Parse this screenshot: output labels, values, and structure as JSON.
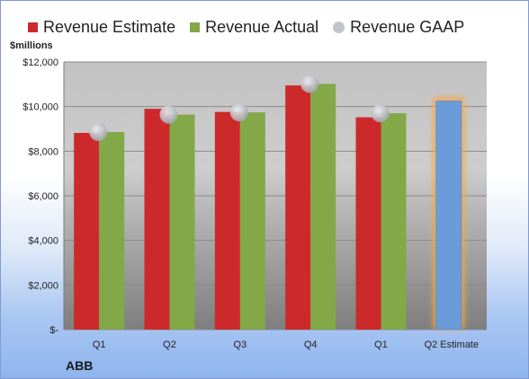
{
  "chart_data": {
    "type": "bar",
    "categories": [
      "Q1",
      "Q2",
      "Q3",
      "Q4",
      "Q1",
      "Q2 Estimate"
    ],
    "ylabel": "$millions",
    "ylim": [
      0,
      12000
    ],
    "yticks": [
      0,
      2000,
      4000,
      6000,
      8000,
      10000,
      12000
    ],
    "ytick_labels": [
      "$-",
      "$2,000",
      "$4,000",
      "$6,000",
      "$8,000",
      "$10,000",
      "$12,000"
    ],
    "grid": true,
    "legend_position": "top",
    "series": [
      {
        "name": "Revenue Estimate",
        "color": "#cc2a2a",
        "values": [
          8820,
          9900,
          9760,
          10950,
          9520,
          10250
        ]
      },
      {
        "name": "Revenue Actual",
        "color": "#82a848",
        "values": [
          8860,
          9640,
          9740,
          11020,
          9700,
          null
        ]
      },
      {
        "name": "Revenue GAAP",
        "color": "#c0c4cc",
        "values": [
          8860,
          9640,
          9740,
          11020,
          9700,
          null
        ]
      }
    ],
    "estimate_bar_color": "#6b9bd8",
    "estimate_glow_color": "#f4a64a",
    "footer_label": "ABB"
  }
}
